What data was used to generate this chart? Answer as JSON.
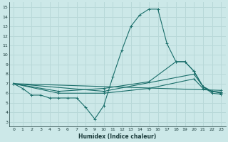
{
  "xlabel": "Humidex (Indice chaleur)",
  "bg_color": "#cce8e8",
  "grid_color": "#b8d8d8",
  "line_color": "#1a6e6a",
  "xlim": [
    -0.5,
    23.5
  ],
  "ylim": [
    2.5,
    15.5
  ],
  "xticks": [
    0,
    1,
    2,
    3,
    4,
    5,
    6,
    7,
    8,
    9,
    10,
    11,
    12,
    13,
    14,
    15,
    16,
    17,
    18,
    19,
    20,
    21,
    22,
    23
  ],
  "yticks": [
    3,
    4,
    5,
    6,
    7,
    8,
    9,
    10,
    11,
    12,
    13,
    14,
    15
  ],
  "line_main": [
    [
      0,
      7.0
    ],
    [
      1,
      6.5
    ],
    [
      2,
      5.8
    ],
    [
      3,
      5.8
    ],
    [
      4,
      5.5
    ],
    [
      5,
      5.5
    ],
    [
      6,
      5.5
    ],
    [
      7,
      5.5
    ],
    [
      8,
      4.5
    ],
    [
      9,
      3.3
    ],
    [
      10,
      4.7
    ],
    [
      11,
      7.7
    ],
    [
      12,
      10.5
    ],
    [
      13,
      13.0
    ],
    [
      14,
      14.2
    ],
    [
      15,
      14.8
    ],
    [
      16,
      14.8
    ],
    [
      17,
      11.2
    ],
    [
      18,
      9.3
    ],
    [
      19,
      9.3
    ],
    [
      20,
      8.3
    ],
    [
      21,
      6.7
    ],
    [
      22,
      6.0
    ],
    [
      23,
      5.9
    ]
  ],
  "line_a": [
    [
      0,
      7.0
    ],
    [
      23,
      6.3
    ]
  ],
  "line_b": [
    [
      0,
      7.0
    ],
    [
      10,
      6.2
    ],
    [
      20,
      8.0
    ],
    [
      21,
      6.7
    ],
    [
      22,
      6.2
    ],
    [
      23,
      6.0
    ]
  ],
  "line_c": [
    [
      0,
      7.0
    ],
    [
      5,
      6.0
    ],
    [
      10,
      6.0
    ],
    [
      15,
      6.5
    ],
    [
      20,
      7.5
    ],
    [
      21,
      6.5
    ],
    [
      22,
      6.2
    ],
    [
      23,
      6.1
    ]
  ],
  "line_d": [
    [
      0,
      7.0
    ],
    [
      5,
      6.2
    ],
    [
      10,
      6.5
    ],
    [
      15,
      7.2
    ],
    [
      18,
      9.3
    ],
    [
      19,
      9.3
    ],
    [
      20,
      8.3
    ],
    [
      21,
      6.7
    ],
    [
      22,
      6.2
    ],
    [
      23,
      6.1
    ]
  ]
}
